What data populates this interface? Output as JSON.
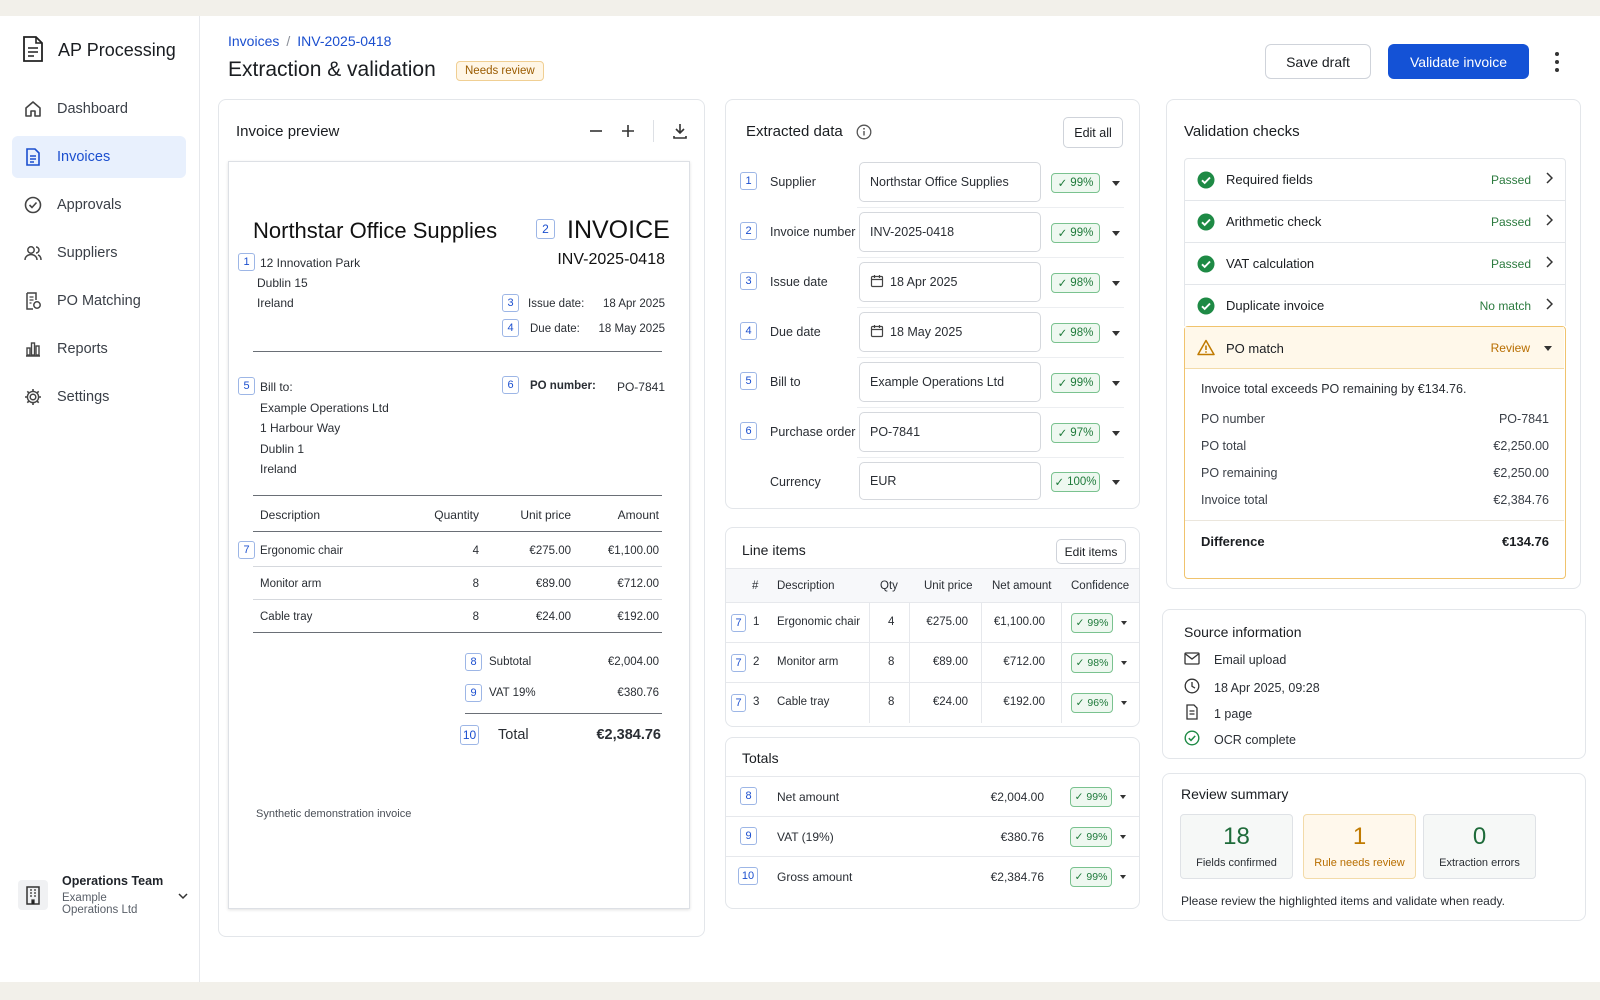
{
  "app": {
    "name": "AP Processing"
  },
  "sidebar": {
    "items": [
      {
        "label": "Dashboard",
        "icon": "home-icon"
      },
      {
        "label": "Invoices",
        "icon": "document-icon",
        "active": true
      },
      {
        "label": "Approvals",
        "icon": "check-circle-icon"
      },
      {
        "label": "Suppliers",
        "icon": "users-icon"
      },
      {
        "label": "PO Matching",
        "icon": "po-matching-icon"
      },
      {
        "label": "Reports",
        "icon": "bar-chart-icon"
      },
      {
        "label": "Settings",
        "icon": "gear-icon"
      }
    ],
    "team": {
      "name": "Operations Team",
      "org": "Example Operations Ltd"
    }
  },
  "header": {
    "breadcrumb": [
      "Invoices",
      "INV-2025-0418"
    ],
    "title": "Extraction & validation",
    "status_badge": "Needs review",
    "save_label": "Save draft",
    "validate_label": "Validate invoice"
  },
  "preview": {
    "title": "Invoice preview",
    "doc": {
      "supplier": "Northstar Office Supplies",
      "supplier_address": [
        "12 Innovation Park",
        "Dublin 15",
        "Ireland"
      ],
      "heading": "INVOICE",
      "invoice_number": "INV-2025-0418",
      "issue_label": "Issue date:",
      "issue_date": "18 Apr 2025",
      "due_label": "Due date:",
      "due_date": "18 May 2025",
      "bill_to_label": "Bill to:",
      "bill_to": [
        "Example Operations Ltd",
        "1 Harbour Way",
        "Dublin 1",
        "Ireland"
      ],
      "po_label": "PO number:",
      "po_number": "PO-7841",
      "table_headers": [
        "Description",
        "Quantity",
        "Unit price",
        "Amount"
      ],
      "lines": [
        {
          "desc": "Ergonomic chair",
          "qty": "4",
          "unit": "€275.00",
          "amount": "€1,100.00"
        },
        {
          "desc": "Monitor arm",
          "qty": "8",
          "unit": "€89.00",
          "amount": "€712.00"
        },
        {
          "desc": "Cable tray",
          "qty": "8",
          "unit": "€24.00",
          "amount": "€192.00"
        }
      ],
      "subtotal_label": "Subtotal",
      "subtotal": "€2,004.00",
      "vat_label": "VAT 19%",
      "vat": "€380.76",
      "total_label": "Total",
      "total": "€2,384.76",
      "footer": "Synthetic demonstration invoice"
    }
  },
  "extracted": {
    "title": "Extracted data",
    "edit_all": "Edit all",
    "fields": [
      {
        "n": "1",
        "label": "Supplier",
        "value": "Northstar Office Supplies",
        "conf": "99%"
      },
      {
        "n": "2",
        "label": "Invoice number",
        "value": "INV-2025-0418",
        "conf": "99%"
      },
      {
        "n": "3",
        "label": "Issue date",
        "value": "18 Apr 2025",
        "conf": "98%",
        "date": true
      },
      {
        "n": "4",
        "label": "Due date",
        "value": "18 May 2025",
        "conf": "98%",
        "date": true
      },
      {
        "n": "5",
        "label": "Bill to",
        "value": "Example Operations Ltd",
        "conf": "99%"
      },
      {
        "n": "6",
        "label": "Purchase order",
        "value": "PO-7841",
        "conf": "97%"
      },
      {
        "n": "",
        "label": "Currency",
        "value": "EUR",
        "conf": "100%"
      }
    ]
  },
  "line_items": {
    "title": "Line items",
    "edit": "Edit items",
    "headers": [
      "#",
      "Description",
      "Qty",
      "Unit price",
      "Net amount",
      "Confidence"
    ],
    "rows": [
      {
        "n": "7",
        "idx": "1",
        "desc": "Ergonomic chair",
        "qty": "4",
        "unit": "€275.00",
        "net": "€1,100.00",
        "conf": "99%"
      },
      {
        "n": "7",
        "idx": "2",
        "desc": "Monitor arm",
        "qty": "8",
        "unit": "€89.00",
        "net": "€712.00",
        "conf": "98%"
      },
      {
        "n": "7",
        "idx": "3",
        "desc": "Cable tray",
        "qty": "8",
        "unit": "€24.00",
        "net": "€192.00",
        "conf": "96%"
      }
    ]
  },
  "totals": {
    "title": "Totals",
    "rows": [
      {
        "n": "8",
        "label": "Net amount",
        "value": "€2,004.00",
        "conf": "99%"
      },
      {
        "n": "9",
        "label": "VAT (19%)",
        "value": "€380.76",
        "conf": "99%"
      },
      {
        "n": "10",
        "label": "Gross amount",
        "value": "€2,384.76",
        "conf": "99%"
      }
    ]
  },
  "validation": {
    "title": "Validation checks",
    "checks": [
      {
        "name": "Required fields",
        "status": "Passed"
      },
      {
        "name": "Arithmetic check",
        "status": "Passed"
      },
      {
        "name": "VAT calculation",
        "status": "Passed"
      },
      {
        "name": "Duplicate invoice",
        "status": "No match"
      }
    ],
    "po": {
      "name": "PO match",
      "status": "Review",
      "message": "Invoice total exceeds PO remaining by €134.76.",
      "rows": [
        {
          "label": "PO number",
          "value": "PO-7841"
        },
        {
          "label": "PO total",
          "value": "€2,250.00"
        },
        {
          "label": "PO remaining",
          "value": "€2,250.00"
        },
        {
          "label": "Invoice total",
          "value": "€2,384.76"
        }
      ],
      "diff_label": "Difference",
      "diff_value": "€134.76"
    }
  },
  "source": {
    "title": "Source information",
    "items": [
      {
        "icon": "mail-icon",
        "text": "Email upload"
      },
      {
        "icon": "clock-icon",
        "text": "18 Apr 2025, 09:28"
      },
      {
        "icon": "page-icon",
        "text": "1 page"
      },
      {
        "icon": "check-circle-icon",
        "text": "OCR complete"
      }
    ]
  },
  "summary": {
    "title": "Review summary",
    "stats": [
      {
        "num": "18",
        "label": "Fields confirmed"
      },
      {
        "num": "1",
        "label": "Rule needs review"
      },
      {
        "num": "0",
        "label": "Extraction errors"
      }
    ],
    "note": "Please review the highlighted items and validate when ready."
  },
  "colors": {
    "accent": "#1452d6",
    "success": "#1e7a3a",
    "warning": "#c07a00",
    "nav_active_bg": "#e8f0fd"
  }
}
